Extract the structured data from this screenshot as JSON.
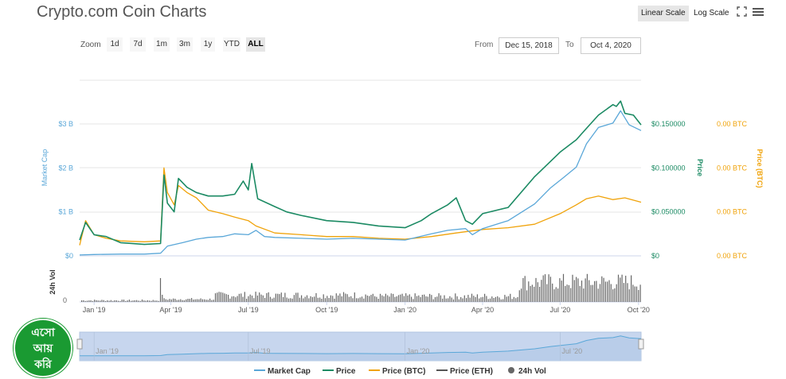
{
  "header": {
    "title": "Crypto.com Coin Charts",
    "linear_scale": "Linear Scale",
    "log_scale": "Log Scale"
  },
  "zoom": {
    "label": "Zoom",
    "buttons": [
      "1d",
      "7d",
      "1m",
      "3m",
      "1y",
      "YTD",
      "ALL"
    ],
    "active": "ALL"
  },
  "range": {
    "from_label": "From",
    "from_value": "Dec 15, 2018",
    "to_label": "To",
    "to_value": "Oct 4, 2020"
  },
  "logo": {
    "lines": [
      "এসো",
      "আয়",
      "করি"
    ]
  },
  "chart_data": {
    "type": "line",
    "x_start": "2018-12-15",
    "x_end": "2020-10-04",
    "x_tick_labels": [
      "Jan '19",
      "Apr '19",
      "Jul '19",
      "Oct '19",
      "Jan '20",
      "Apr '20",
      "Jul '20",
      "Oct '20"
    ],
    "x_tick_dates": [
      "2019-01-01",
      "2019-04-01",
      "2019-07-01",
      "2019-10-01",
      "2020-01-01",
      "2020-04-01",
      "2020-07-01",
      "2020-10-01"
    ],
    "navigator_labels": [
      "Jan '19",
      "Jul '19",
      "Jan '20",
      "Jul '20"
    ],
    "navigator_dates": [
      "2019-01-01",
      "2019-07-01",
      "2020-01-01",
      "2020-07-01"
    ],
    "left_axis": {
      "label": "Market Cap",
      "ticks": [
        "$0",
        "$1 B",
        "$2 B",
        "$3 B"
      ],
      "values": [
        0,
        1,
        2,
        3
      ]
    },
    "price_axis": {
      "label": "Price",
      "ticks": [
        "$0",
        "$0.050000",
        "$0.100000",
        "$0.150000"
      ],
      "values": [
        0,
        0.05,
        0.1,
        0.15
      ]
    },
    "btc_axis": {
      "label": "Price (BTC)",
      "ticks": [
        "0.00 BTC",
        "0.00 BTC",
        "0.00 BTC",
        "0.00 BTC"
      ]
    },
    "volume_axis": {
      "label": "24h Vol",
      "ticks": [
        "0"
      ]
    },
    "legend": [
      "Market Cap",
      "Price",
      "Price (BTC)",
      "Price (ETH)",
      "24h Vol"
    ],
    "colors": {
      "market_cap": "#5aa7d8",
      "price": "#1b8a63",
      "price_btc": "#f0a30a",
      "price_eth": "#555555",
      "volume": "#666666",
      "navigator_fill": "#c7d6ee",
      "navigator_line": "#5aa7d8"
    },
    "series": [
      {
        "name": "Market Cap",
        "unit": "B USD",
        "points": [
          [
            "2018-12-15",
            0.02
          ],
          [
            "2019-01-01",
            0.03
          ],
          [
            "2019-02-01",
            0.04
          ],
          [
            "2019-03-01",
            0.04
          ],
          [
            "2019-03-20",
            0.06
          ],
          [
            "2019-03-28",
            0.22
          ],
          [
            "2019-04-15",
            0.3
          ],
          [
            "2019-05-01",
            0.38
          ],
          [
            "2019-05-15",
            0.42
          ],
          [
            "2019-06-01",
            0.44
          ],
          [
            "2019-06-15",
            0.5
          ],
          [
            "2019-07-01",
            0.48
          ],
          [
            "2019-07-10",
            0.58
          ],
          [
            "2019-07-20",
            0.44
          ],
          [
            "2019-08-01",
            0.42
          ],
          [
            "2019-09-01",
            0.4
          ],
          [
            "2019-10-01",
            0.38
          ],
          [
            "2019-11-01",
            0.4
          ],
          [
            "2019-12-01",
            0.38
          ],
          [
            "2020-01-01",
            0.36
          ],
          [
            "2020-02-01",
            0.5
          ],
          [
            "2020-02-20",
            0.58
          ],
          [
            "2020-03-12",
            0.62
          ],
          [
            "2020-03-20",
            0.48
          ],
          [
            "2020-04-01",
            0.62
          ],
          [
            "2020-05-01",
            0.8
          ],
          [
            "2020-06-01",
            1.18
          ],
          [
            "2020-06-20",
            1.55
          ],
          [
            "2020-07-05",
            1.78
          ],
          [
            "2020-07-20",
            2.02
          ],
          [
            "2020-08-01",
            2.55
          ],
          [
            "2020-08-15",
            2.92
          ],
          [
            "2020-09-01",
            3.02
          ],
          [
            "2020-09-10",
            3.3
          ],
          [
            "2020-09-20",
            2.98
          ],
          [
            "2020-10-04",
            2.85
          ]
        ]
      },
      {
        "name": "Price",
        "unit": "USD",
        "points": [
          [
            "2018-12-15",
            0.018
          ],
          [
            "2018-12-22",
            0.038
          ],
          [
            "2019-01-01",
            0.024
          ],
          [
            "2019-01-15",
            0.022
          ],
          [
            "2019-02-01",
            0.015
          ],
          [
            "2019-03-01",
            0.013
          ],
          [
            "2019-03-20",
            0.014
          ],
          [
            "2019-03-24",
            0.092
          ],
          [
            "2019-03-28",
            0.06
          ],
          [
            "2019-04-05",
            0.05
          ],
          [
            "2019-04-10",
            0.088
          ],
          [
            "2019-04-20",
            0.078
          ],
          [
            "2019-05-01",
            0.072
          ],
          [
            "2019-05-15",
            0.068
          ],
          [
            "2019-06-01",
            0.068
          ],
          [
            "2019-06-15",
            0.07
          ],
          [
            "2019-06-25",
            0.085
          ],
          [
            "2019-07-01",
            0.075
          ],
          [
            "2019-07-05",
            0.105
          ],
          [
            "2019-07-12",
            0.065
          ],
          [
            "2019-08-01",
            0.056
          ],
          [
            "2019-08-15",
            0.05
          ],
          [
            "2019-09-01",
            0.046
          ],
          [
            "2019-10-01",
            0.04
          ],
          [
            "2019-11-01",
            0.038
          ],
          [
            "2019-12-01",
            0.034
          ],
          [
            "2020-01-01",
            0.032
          ],
          [
            "2020-01-20",
            0.04
          ],
          [
            "2020-02-01",
            0.048
          ],
          [
            "2020-02-20",
            0.058
          ],
          [
            "2020-03-01",
            0.066
          ],
          [
            "2020-03-12",
            0.04
          ],
          [
            "2020-03-20",
            0.036
          ],
          [
            "2020-04-01",
            0.048
          ],
          [
            "2020-05-01",
            0.055
          ],
          [
            "2020-06-01",
            0.09
          ],
          [
            "2020-07-01",
            0.118
          ],
          [
            "2020-07-20",
            0.132
          ],
          [
            "2020-08-01",
            0.145
          ],
          [
            "2020-08-15",
            0.16
          ],
          [
            "2020-09-01",
            0.172
          ],
          [
            "2020-09-05",
            0.17
          ],
          [
            "2020-09-10",
            0.176
          ],
          [
            "2020-09-15",
            0.162
          ],
          [
            "2020-09-25",
            0.16
          ],
          [
            "2020-10-04",
            0.149
          ]
        ]
      },
      {
        "name": "Price (BTC)",
        "points": [
          [
            "2018-12-15",
            0.012
          ],
          [
            "2018-12-22",
            0.04
          ],
          [
            "2019-01-01",
            0.024
          ],
          [
            "2019-01-15",
            0.02
          ],
          [
            "2019-02-01",
            0.017
          ],
          [
            "2019-03-01",
            0.016
          ],
          [
            "2019-03-20",
            0.017
          ],
          [
            "2019-03-24",
            0.1
          ],
          [
            "2019-03-28",
            0.072
          ],
          [
            "2019-04-05",
            0.058
          ],
          [
            "2019-04-10",
            0.08
          ],
          [
            "2019-04-20",
            0.072
          ],
          [
            "2019-05-01",
            0.066
          ],
          [
            "2019-05-15",
            0.052
          ],
          [
            "2019-06-01",
            0.048
          ],
          [
            "2019-06-15",
            0.044
          ],
          [
            "2019-07-01",
            0.04
          ],
          [
            "2019-07-10",
            0.034
          ],
          [
            "2019-08-01",
            0.026
          ],
          [
            "2019-09-01",
            0.024
          ],
          [
            "2019-10-01",
            0.022
          ],
          [
            "2019-11-01",
            0.022
          ],
          [
            "2019-12-01",
            0.02
          ],
          [
            "2020-01-01",
            0.019
          ],
          [
            "2020-02-01",
            0.022
          ],
          [
            "2020-03-01",
            0.026
          ],
          [
            "2020-04-01",
            0.03
          ],
          [
            "2020-05-01",
            0.032
          ],
          [
            "2020-06-01",
            0.036
          ],
          [
            "2020-07-01",
            0.048
          ],
          [
            "2020-07-20",
            0.058
          ],
          [
            "2020-08-01",
            0.065
          ],
          [
            "2020-08-15",
            0.068
          ],
          [
            "2020-09-01",
            0.064
          ],
          [
            "2020-09-15",
            0.066
          ],
          [
            "2020-10-04",
            0.061
          ]
        ]
      }
    ]
  }
}
